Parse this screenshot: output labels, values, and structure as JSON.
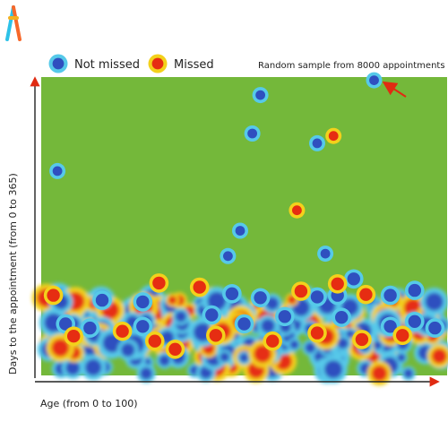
{
  "colors": {
    "background": "#ffffff",
    "plot_bg": "#74b83a",
    "not_missed_center": "#2f4fbf",
    "not_missed_ring": "#56c9e9",
    "missed_center": "#e62d12",
    "missed_ring": "#f3d11b",
    "annotation_arrow": "#e02a12",
    "axis": "#222222",
    "logo_top": "#f4b01e",
    "logo_left": "#2dc2e8",
    "logo_right": "#f7682a"
  },
  "logo": {
    "name": "triangle-logo-icon"
  },
  "legend": {
    "not_missed_label": "Not missed",
    "missed_label": "Missed"
  },
  "note": {
    "sample_text": "Random sample from 8000 appointments"
  },
  "chart_data": {
    "type": "heatmap",
    "title": "",
    "xlabel": "Age (from 0 to 100)",
    "ylabel": "Days to the appointment (from 0 to 365)",
    "xlim": [
      0,
      100
    ],
    "ylim": [
      0,
      365
    ],
    "legend": [
      "Not missed",
      "Missed"
    ],
    "legend_position": "top-left",
    "grid": false,
    "annotation": {
      "text": "Random sample from 8000 appointments",
      "arrow_target": {
        "x": 82,
        "y": 361
      }
    },
    "series": [
      {
        "name": "Not missed",
        "points": [
          {
            "x": 4,
            "y": 250
          },
          {
            "x": 54,
            "y": 343
          },
          {
            "x": 52,
            "y": 296
          },
          {
            "x": 68,
            "y": 284
          },
          {
            "x": 49,
            "y": 177
          },
          {
            "x": 46,
            "y": 146
          },
          {
            "x": 70,
            "y": 149
          },
          {
            "x": 82,
            "y": 361
          },
          {
            "x": 15,
            "y": 92
          },
          {
            "x": 25,
            "y": 90
          },
          {
            "x": 47,
            "y": 100
          },
          {
            "x": 54,
            "y": 95
          },
          {
            "x": 68,
            "y": 96
          },
          {
            "x": 73,
            "y": 98
          },
          {
            "x": 77,
            "y": 118
          },
          {
            "x": 86,
            "y": 98
          },
          {
            "x": 92,
            "y": 104
          },
          {
            "x": 6,
            "y": 63
          },
          {
            "x": 12,
            "y": 58
          },
          {
            "x": 25,
            "y": 60
          },
          {
            "x": 42,
            "y": 74
          },
          {
            "x": 50,
            "y": 63
          },
          {
            "x": 60,
            "y": 72
          },
          {
            "x": 74,
            "y": 71
          },
          {
            "x": 86,
            "y": 60
          },
          {
            "x": 92,
            "y": 66
          },
          {
            "x": 97,
            "y": 58
          }
        ]
      },
      {
        "name": "Missed",
        "points": [
          {
            "x": 72,
            "y": 293
          },
          {
            "x": 63,
            "y": 202
          },
          {
            "x": 3,
            "y": 98
          },
          {
            "x": 29,
            "y": 113
          },
          {
            "x": 39,
            "y": 108
          },
          {
            "x": 64,
            "y": 103
          },
          {
            "x": 73,
            "y": 112
          },
          {
            "x": 80,
            "y": 99
          },
          {
            "x": 8,
            "y": 48
          },
          {
            "x": 20,
            "y": 54
          },
          {
            "x": 28,
            "y": 42
          },
          {
            "x": 33,
            "y": 32
          },
          {
            "x": 43,
            "y": 49
          },
          {
            "x": 57,
            "y": 42
          },
          {
            "x": 68,
            "y": 52
          },
          {
            "x": 79,
            "y": 44
          },
          {
            "x": 89,
            "y": 49
          }
        ]
      }
    ]
  }
}
